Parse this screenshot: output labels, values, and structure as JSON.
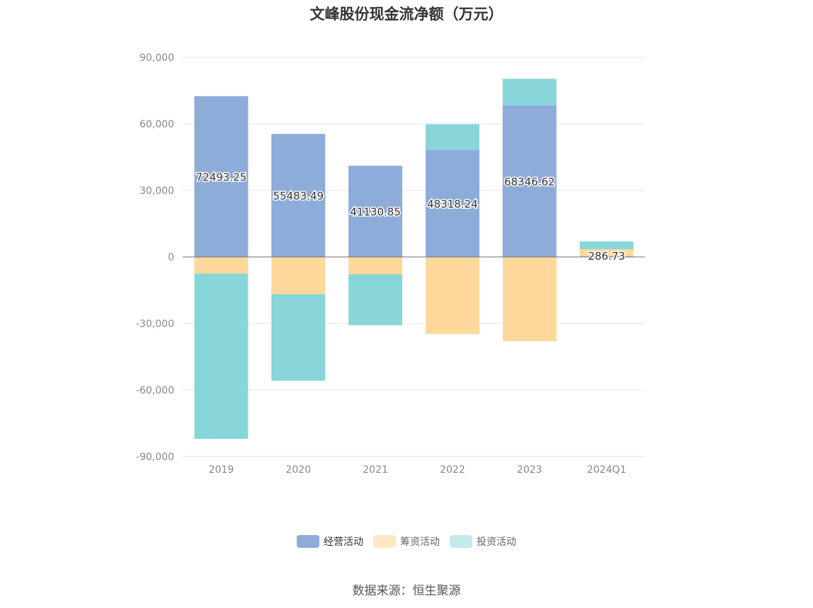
{
  "chart_data": {
    "type": "bar",
    "stacked": true,
    "title": "文峰股份现金流净额（万元）",
    "categories": [
      "2019",
      "2020",
      "2021",
      "2022",
      "2023",
      "2024Q1"
    ],
    "ylim": [
      -90000,
      90000
    ],
    "yticks": [
      90000,
      60000,
      30000,
      0,
      -30000,
      -60000,
      -90000
    ],
    "ytick_labels": [
      "90,000",
      "60,000",
      "30,000",
      "0",
      "-30,000",
      "-60,000",
      "-90,000"
    ],
    "grid": true,
    "legend_position": "bottom",
    "series": [
      {
        "name": "经营活动",
        "color": "#8eacd9",
        "values": [
          72493.25,
          55483.49,
          41130.85,
          48318.24,
          68346.62,
          286.73
        ],
        "labels": [
          "72493.25",
          "55483.49",
          "41130.85",
          "48318.24",
          "68346.62",
          "286.73"
        ]
      },
      {
        "name": "筹资活动",
        "color": "#fed99b",
        "values": [
          -7500,
          -16800,
          -7800,
          -34800,
          -38000,
          3200
        ]
      },
      {
        "name": "投资活动",
        "color": "#88d6d9",
        "values": [
          -74500,
          -39000,
          -23000,
          11500,
          12000,
          3500
        ]
      }
    ]
  },
  "legend": {
    "items": [
      {
        "label": "经营活动",
        "color": "#8eacd9",
        "swatch_color": "#8eacd9"
      },
      {
        "label": "筹资活动",
        "color": "#fed99b",
        "swatch_color": "#fde7c4"
      },
      {
        "label": "投资活动",
        "color": "#88d6d9",
        "swatch_color": "#c4eaec"
      }
    ]
  },
  "source": "数据来源：恒生聚源"
}
